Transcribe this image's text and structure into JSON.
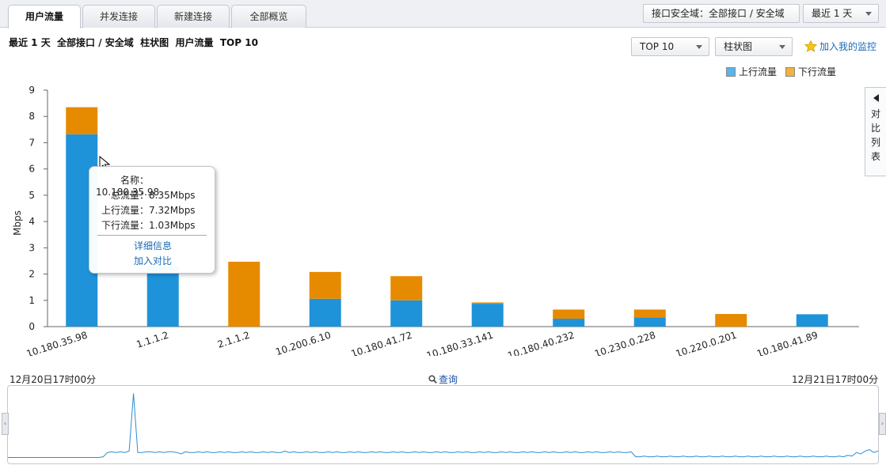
{
  "tabs": [
    {
      "label": "用户流量",
      "active": true
    },
    {
      "label": "并发连接",
      "active": false
    },
    {
      "label": "新建连接",
      "active": false
    },
    {
      "label": "全部概览",
      "active": false
    }
  ],
  "header": {
    "zone_filter": "接口安全域：全部接口 / 安全域",
    "time_filter": "最近 1 天"
  },
  "toolbar": {
    "subtitle": "最近 1 天  全部接口 / 安全域  柱状图  用户流量  TOP 10",
    "top_select": "TOP 10",
    "chart_type_select": "柱状图",
    "add_monitor": "加入我的监控",
    "star_icon": "star-icon"
  },
  "legend": {
    "upload": "上行流量",
    "download": "下行流量"
  },
  "side_panel": {
    "label": "对比列表"
  },
  "colors": {
    "upload": "#1f93d9",
    "download": "#e68a00"
  },
  "chart_data": {
    "type": "bar",
    "stacked": true,
    "ylabel": "Mbps",
    "ylim": [
      0,
      9
    ],
    "yticks": [
      0,
      1,
      2,
      3,
      4,
      5,
      6,
      7,
      8,
      9
    ],
    "categories": [
      "10.180.35.98",
      "1.1.1.2",
      "2.1.1.2",
      "10.200.6.10",
      "10.180.41.72",
      "10.180.33.141",
      "10.180.40.232",
      "10.230.0.228",
      "10.220.0.201",
      "10.180.41.89"
    ],
    "series": [
      {
        "name": "上行流量",
        "values": [
          7.32,
          2.3,
          0,
          1.06,
          1.0,
          0.87,
          0.3,
          0.35,
          0,
          0.47
        ]
      },
      {
        "name": "下行流量",
        "values": [
          1.03,
          0,
          2.47,
          1.02,
          0.92,
          0.05,
          0.35,
          0.3,
          0.48,
          0
        ]
      }
    ]
  },
  "tooltip": {
    "name_key": "名称：",
    "name_val": "10.180.35.98",
    "total_key": "总流量：",
    "total_val": "8.35Mbps",
    "up_key": "上行流量：",
    "up_val": "7.32Mbps",
    "down_key": "下行流量：",
    "down_val": "1.03Mbps",
    "detail_link": "详细信息",
    "compare_link": "加入对比"
  },
  "timeline": {
    "start": "12月20日17时00分",
    "end": "12月21日17时00分",
    "query": "查询",
    "trend": [
      0.05,
      0.05,
      0.05,
      0.05,
      0.05,
      0.05,
      0.05,
      0.05,
      0.05,
      0.05,
      0.05,
      0.05,
      0.05,
      0.05,
      0.05,
      0.05,
      0.05,
      0.05,
      0.05,
      0.05,
      0.05,
      0.05,
      0.06,
      0.12,
      0.13,
      0.12,
      0.13,
      0.12,
      0.14,
      0.95,
      0.12,
      0.12,
      0.13,
      0.13,
      0.12,
      0.13,
      0.12,
      0.13,
      0.13,
      0.12,
      0.1,
      0.13,
      0.12,
      0.12,
      0.13,
      0.12,
      0.13,
      0.12,
      0.12,
      0.13,
      0.12,
      0.13,
      0.12,
      0.12,
      0.13,
      0.12,
      0.13,
      0.12,
      0.12,
      0.13,
      0.12,
      0.13,
      0.12,
      0.12,
      0.14,
      0.12,
      0.13,
      0.12,
      0.12,
      0.13,
      0.12,
      0.13,
      0.12,
      0.12,
      0.13,
      0.12,
      0.13,
      0.12,
      0.12,
      0.13,
      0.12,
      0.13,
      0.12,
      0.12,
      0.13,
      0.12,
      0.13,
      0.12,
      0.12,
      0.13,
      0.12,
      0.13,
      0.12,
      0.12,
      0.13,
      0.12,
      0.13,
      0.12,
      0.12,
      0.13,
      0.12,
      0.13,
      0.12,
      0.12,
      0.13,
      0.12,
      0.13,
      0.12,
      0.12,
      0.13,
      0.12,
      0.13,
      0.12,
      0.12,
      0.13,
      0.12,
      0.13,
      0.12,
      0.12,
      0.13,
      0.12,
      0.13,
      0.12,
      0.12,
      0.13,
      0.12,
      0.13,
      0.12,
      0.12,
      0.13,
      0.12,
      0.13,
      0.12,
      0.12,
      0.13,
      0.12,
      0.13,
      0.12,
      0.12,
      0.13,
      0.12,
      0.13,
      0.12,
      0.12,
      0.13,
      0.06,
      0.06,
      0.07,
      0.06,
      0.06,
      0.07,
      0.06,
      0.06,
      0.07,
      0.06,
      0.06,
      0.07,
      0.06,
      0.06,
      0.07,
      0.06,
      0.06,
      0.07,
      0.06,
      0.06,
      0.07,
      0.06,
      0.06,
      0.07,
      0.06,
      0.06,
      0.07,
      0.06,
      0.06,
      0.07,
      0.06,
      0.06,
      0.07,
      0.06,
      0.06,
      0.07,
      0.06,
      0.06,
      0.07,
      0.06,
      0.06,
      0.07,
      0.06,
      0.06,
      0.07,
      0.06,
      0.06,
      0.07,
      0.06,
      0.08,
      0.07,
      0.12,
      0.1,
      0.14,
      0.16,
      0.12,
      0.14
    ]
  }
}
